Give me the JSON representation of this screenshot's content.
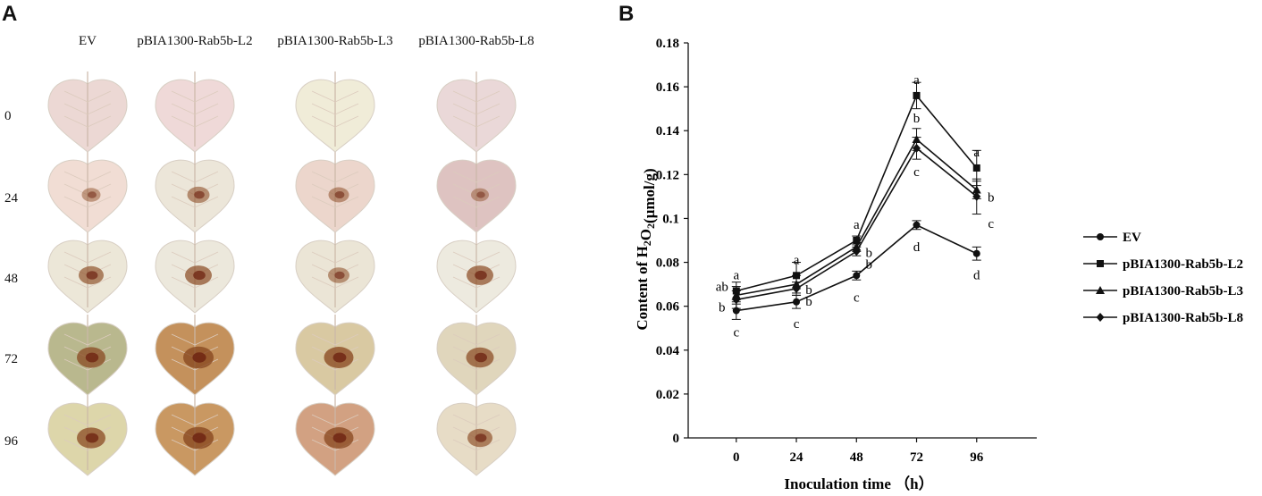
{
  "panel_a": {
    "letter": "A",
    "columns": [
      "EV",
      "pBIA1300-Rab5b-L2",
      "pBIA1300-Rab5b-L3",
      "pBIA1300-Rab5b-L8"
    ],
    "rows": [
      "0",
      "24",
      "48",
      "72",
      "96"
    ]
  },
  "panel_b": {
    "letter": "B"
  },
  "chart_data": {
    "type": "line",
    "title": "",
    "xlabel": "Inoculation time （h）",
    "ylabel_parts": [
      "Content of H",
      "2",
      "O",
      "2",
      "(μmol/g)"
    ],
    "categories": [
      "0",
      "24",
      "48",
      "72",
      "96"
    ],
    "ylim": [
      0,
      0.18
    ],
    "yticks": [
      "0",
      "0.02",
      "0.04",
      "0.06",
      "0.08",
      "0.1",
      "0.12",
      "0.14",
      "0.16",
      "0.18"
    ],
    "series": [
      {
        "name": "EV",
        "marker": "circle",
        "values": [
          0.058,
          0.062,
          0.074,
          0.097,
          0.084
        ],
        "errors": [
          0.004,
          0.003,
          0.002,
          0.002,
          0.003
        ],
        "letters": [
          "c",
          "c",
          "c",
          "d",
          "d"
        ]
      },
      {
        "name": "pBIA1300-Rab5b-L2",
        "marker": "square",
        "values": [
          0.067,
          0.074,
          0.09,
          0.156,
          0.123
        ],
        "errors": [
          0.004,
          0.006,
          0.002,
          0.006,
          0.008
        ],
        "letters": [
          "a",
          "a",
          "a",
          "a",
          "a"
        ]
      },
      {
        "name": "pBIA1300-Rab5b-L3",
        "marker": "triangle",
        "values": [
          0.065,
          0.07,
          0.087,
          0.136,
          0.113
        ],
        "errors": [
          0.004,
          0.004,
          0.002,
          0.005,
          0.004
        ],
        "letters": [
          "ab",
          "b",
          "b",
          "b",
          "b"
        ]
      },
      {
        "name": "pBIA1300-Rab5b-L8",
        "marker": "diamond",
        "values": [
          0.063,
          0.068,
          0.085,
          0.132,
          0.11
        ],
        "errors": [
          0.004,
          0.003,
          0.002,
          0.005,
          0.008
        ],
        "letters": [
          "b",
          "b",
          "b",
          "c",
          "c"
        ]
      }
    ]
  },
  "colors": {
    "line": "#111111",
    "leaf_pale": "#ead6d0",
    "leaf_brown": "#c9945a",
    "lesion": "#7a3a1c"
  }
}
